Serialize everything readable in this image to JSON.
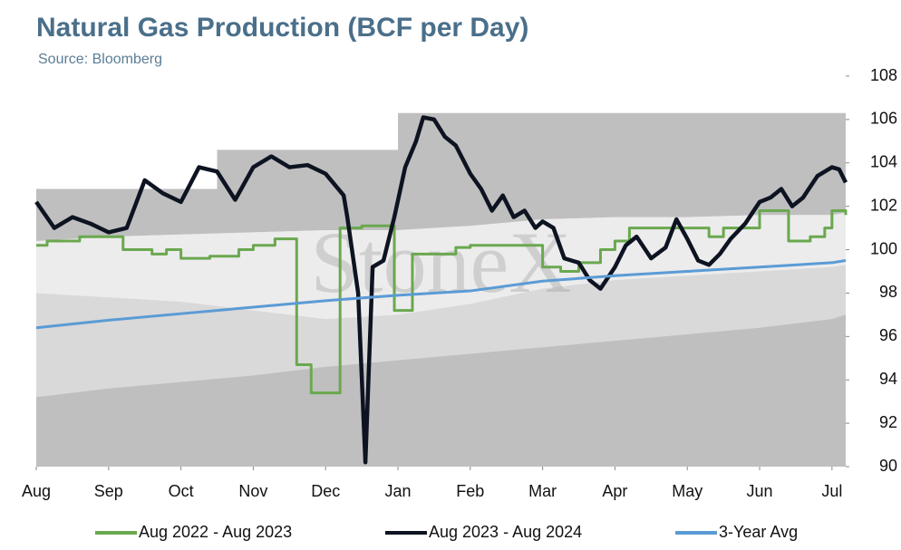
{
  "chart_data": {
    "type": "line",
    "title": "Natural Gas Production (BCF per Day)",
    "subtitle": "Source: Bloomberg",
    "watermark": "StoneX",
    "xlim": [
      0,
      11.19
    ],
    "xticks": [
      {
        "value": 0,
        "label": "Aug"
      },
      {
        "value": 1,
        "label": "Sep"
      },
      {
        "value": 2,
        "label": "Oct"
      },
      {
        "value": 3,
        "label": "Nov"
      },
      {
        "value": 4,
        "label": "Dec"
      },
      {
        "value": 5,
        "label": "Jan"
      },
      {
        "value": 6,
        "label": "Feb"
      },
      {
        "value": 7,
        "label": "Mar"
      },
      {
        "value": 8,
        "label": "Apr"
      },
      {
        "value": 9,
        "label": "May"
      },
      {
        "value": 10,
        "label": "Jun"
      },
      {
        "value": 11,
        "label": "Jul"
      }
    ],
    "ylim": [
      90,
      108
    ],
    "yticks": [
      90,
      92,
      94,
      96,
      98,
      100,
      102,
      104,
      106,
      108
    ],
    "y_axis_side": "right",
    "legend": "bottom",
    "bands": [
      {
        "color": "#bfbfbf",
        "x": [
          0,
          2.5,
          2.5,
          5.0,
          5.0,
          11.19
        ],
        "upper": [
          102.8,
          102.8,
          104.6,
          104.6,
          106.3,
          106.3
        ],
        "lower": [
          90,
          90,
          90,
          90,
          90,
          90
        ]
      },
      {
        "color": "#d9d9d9",
        "x": [
          0,
          1,
          2,
          3,
          4,
          5,
          6,
          7,
          8,
          9,
          10,
          11,
          11.19
        ],
        "upper": [
          100.4,
          100.6,
          100.7,
          100.8,
          100.9,
          100.9,
          101.1,
          101.4,
          101.5,
          101.5,
          101.6,
          101.6,
          101.7
        ],
        "lower": [
          93.2,
          93.6,
          93.9,
          94.2,
          94.6,
          94.9,
          95.2,
          95.5,
          95.8,
          96.1,
          96.4,
          96.8,
          97.0
        ]
      },
      {
        "color": "#ececec",
        "x": [
          0,
          1,
          2,
          3,
          4,
          5,
          6,
          7,
          8,
          9,
          10,
          11,
          11.19
        ],
        "upper": [
          100.4,
          100.6,
          100.7,
          100.8,
          100.9,
          100.9,
          101.1,
          101.4,
          101.5,
          101.5,
          101.6,
          101.6,
          101.7
        ],
        "lower": [
          98.0,
          97.8,
          97.6,
          97.2,
          96.8,
          97.0,
          97.5,
          98.2,
          98.6,
          98.8,
          99.0,
          99.2,
          99.3
        ]
      }
    ],
    "series": [
      {
        "name": "Aug 2022 - Aug 2023",
        "color": "#6aa84f",
        "step": true,
        "x": [
          0,
          0.15,
          0.6,
          1.0,
          1.2,
          1.6,
          1.8,
          2.0,
          2.4,
          2.8,
          3.0,
          3.3,
          3.6,
          3.8,
          4.2,
          4.5,
          4.95,
          5.2,
          5.8,
          6.0,
          6.5,
          7.0,
          7.25,
          7.5,
          7.8,
          8.0,
          8.2,
          8.5,
          9.0,
          9.3,
          9.5,
          10.0,
          10.4,
          10.7,
          10.9,
          11.0,
          11.19
        ],
        "values": [
          100.2,
          100.4,
          100.6,
          100.6,
          100.0,
          99.8,
          100.0,
          99.6,
          99.7,
          100.0,
          100.2,
          100.5,
          94.7,
          93.4,
          101.0,
          101.1,
          97.2,
          99.8,
          100.1,
          100.2,
          100.2,
          99.2,
          99.0,
          99.4,
          100.0,
          100.4,
          101.0,
          101.0,
          101.0,
          100.6,
          101.0,
          101.8,
          100.4,
          100.6,
          101.0,
          101.8,
          101.6
        ]
      },
      {
        "name": "Aug 2023 - Aug 2024",
        "color": "#0d1321",
        "x": [
          0,
          0.25,
          0.5,
          0.75,
          1.0,
          1.25,
          1.5,
          1.75,
          2.0,
          2.25,
          2.5,
          2.75,
          3.0,
          3.25,
          3.5,
          3.75,
          4.0,
          4.25,
          4.3,
          4.45,
          4.55,
          4.65,
          4.8,
          4.95,
          5.1,
          5.25,
          5.35,
          5.5,
          5.65,
          5.8,
          6.0,
          6.15,
          6.3,
          6.45,
          6.6,
          6.75,
          6.9,
          7.0,
          7.15,
          7.3,
          7.5,
          7.65,
          7.8,
          8.0,
          8.15,
          8.3,
          8.5,
          8.7,
          8.85,
          9.0,
          9.15,
          9.3,
          9.45,
          9.6,
          9.8,
          10.0,
          10.15,
          10.3,
          10.45,
          10.6,
          10.8,
          11.0,
          11.1,
          11.19
        ],
        "values": [
          102.2,
          101.0,
          101.5,
          101.2,
          100.8,
          101.0,
          103.2,
          102.6,
          102.2,
          103.8,
          103.6,
          102.3,
          103.8,
          104.3,
          103.8,
          103.9,
          103.5,
          102.5,
          101.5,
          98.0,
          90.2,
          99.2,
          99.5,
          101.5,
          103.8,
          105.0,
          106.1,
          106.0,
          105.2,
          104.8,
          103.5,
          102.8,
          101.8,
          102.5,
          101.5,
          101.8,
          101.0,
          101.3,
          101.0,
          99.6,
          99.4,
          98.6,
          98.2,
          99.2,
          100.2,
          100.6,
          99.6,
          100.1,
          101.4,
          100.5,
          99.5,
          99.3,
          99.8,
          100.5,
          101.2,
          102.2,
          102.4,
          102.8,
          102.0,
          102.4,
          103.4,
          103.8,
          103.7,
          103.1
        ]
      },
      {
        "name": "3-Year Avg",
        "color": "#5b9bd5",
        "x": [
          0,
          1,
          2,
          3,
          4,
          5,
          6,
          7,
          8,
          9,
          10,
          11,
          11.19
        ],
        "values": [
          96.4,
          96.75,
          97.05,
          97.35,
          97.65,
          97.9,
          98.1,
          98.55,
          98.8,
          99.0,
          99.2,
          99.4,
          99.5
        ]
      }
    ]
  }
}
